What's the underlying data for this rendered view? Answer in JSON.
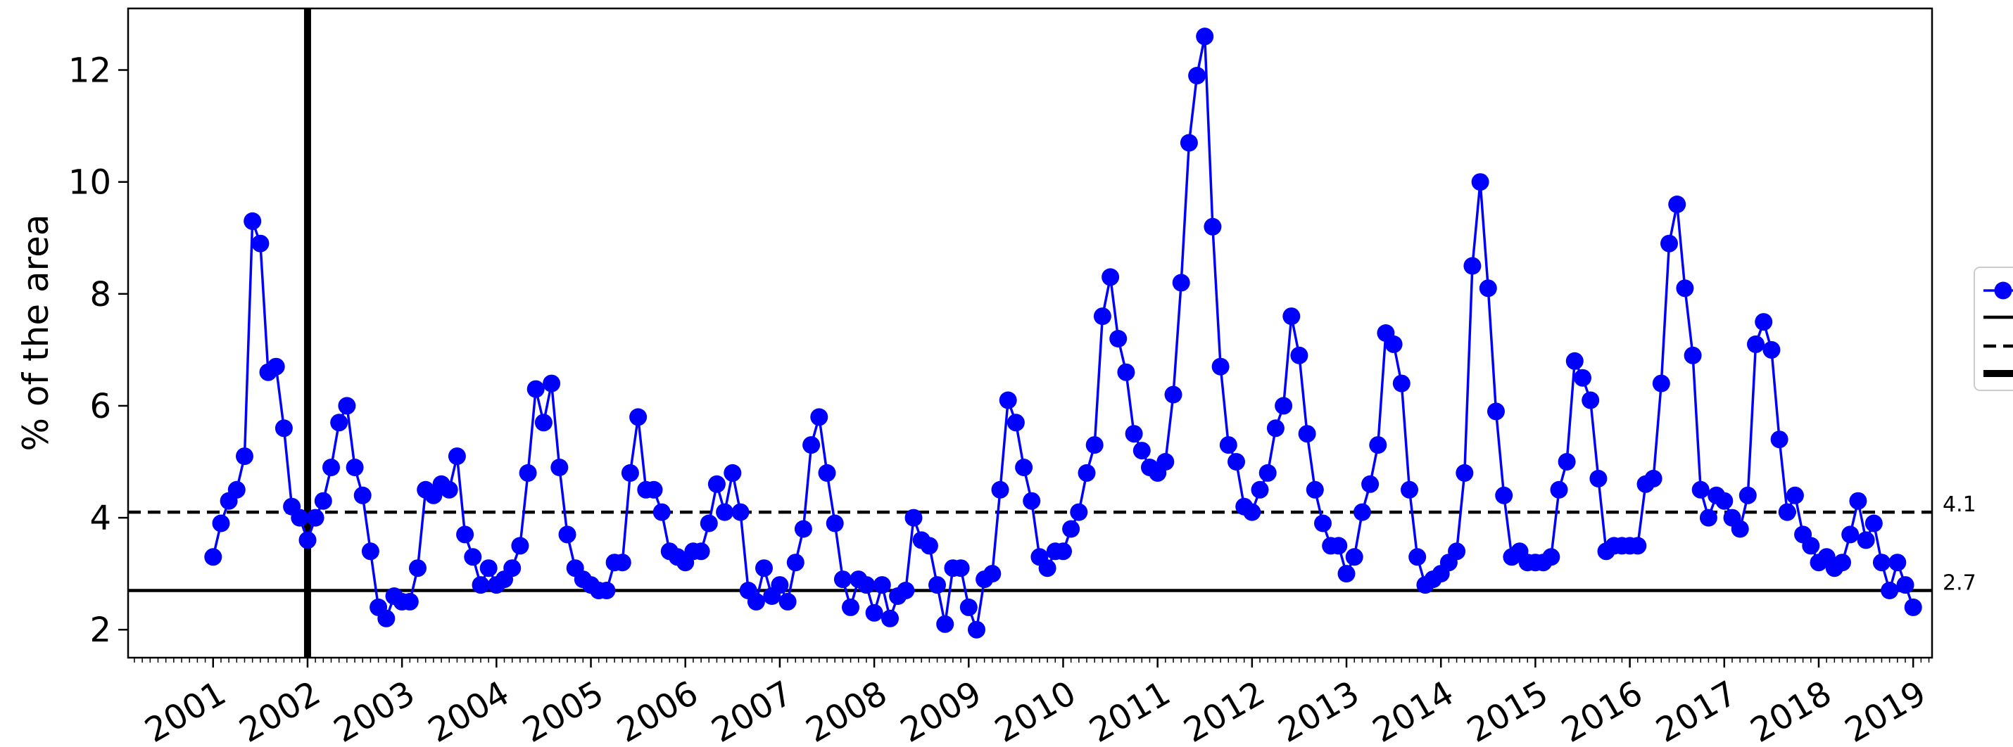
{
  "chart_data": {
    "type": "line",
    "title": "",
    "xlabel": "",
    "ylabel": "% of the area",
    "xlim": [
      2000.1,
      2019.2
    ],
    "ylim": [
      1.5,
      13.1
    ],
    "yticks": [
      2,
      4,
      6,
      8,
      10,
      12
    ],
    "xticks": [
      "2001",
      "2002",
      "2003",
      "2004",
      "2005",
      "2006",
      "2007",
      "2008",
      "2009",
      "2010",
      "2011",
      "2012",
      "2013",
      "2014",
      "2015",
      "2016",
      "2017",
      "2018",
      "2019"
    ],
    "grid": false,
    "legend_position": "right (clipped)",
    "colors": {
      "series": "#0000ff",
      "reference": "#000000"
    },
    "series": [
      {
        "start": [
          2001,
          1
        ],
        "values": [
          3.3,
          3.9,
          4.3,
          4.5,
          5.1,
          9.3,
          8.9,
          6.6,
          6.7,
          5.6,
          4.2,
          4.0,
          3.6,
          4.0,
          4.3,
          4.9,
          5.7,
          6.0,
          4.9,
          4.4,
          3.4,
          2.4,
          2.2,
          2.6,
          2.5,
          2.5,
          3.1,
          4.5,
          4.4,
          4.6,
          4.5,
          5.1,
          3.7,
          3.3,
          2.8,
          3.1,
          2.8,
          2.9,
          3.1,
          3.5,
          4.8,
          6.3,
          5.7,
          6.4,
          4.9,
          3.7,
          3.1,
          2.9,
          2.8,
          2.7,
          2.7,
          3.2,
          3.2,
          4.8,
          5.8,
          4.5,
          4.5,
          4.1,
          3.4,
          3.3,
          3.2,
          3.4,
          3.4,
          3.9,
          4.6,
          4.1,
          4.8,
          4.1,
          2.7,
          2.5,
          3.1,
          2.6,
          2.8,
          2.5,
          3.2,
          3.8,
          5.3,
          5.8,
          4.8,
          3.9,
          2.9,
          2.4,
          2.9,
          2.8,
          2.3,
          2.8,
          2.2,
          2.6,
          2.7,
          4.0,
          3.6,
          3.5,
          2.8,
          2.1,
          3.1,
          3.1,
          2.4,
          2.0,
          2.9,
          3.0,
          4.5,
          6.1,
          5.7,
          4.9,
          4.3,
          3.3,
          3.1,
          3.4,
          3.4,
          3.8,
          4.1,
          4.8,
          5.3,
          7.6,
          8.3,
          7.2,
          6.6,
          5.5,
          5.2,
          4.9,
          4.8,
          5.0,
          6.2,
          8.2,
          10.7,
          11.9,
          12.6,
          9.2,
          6.7,
          5.3,
          5.0,
          4.2,
          4.1,
          4.5,
          4.8,
          5.6,
          6.0,
          7.6,
          6.9,
          5.5,
          4.5,
          3.9,
          3.5,
          3.5,
          3.0,
          3.3,
          4.1,
          4.6,
          5.3,
          7.3,
          7.1,
          6.4,
          4.5,
          3.3,
          2.8,
          2.9,
          3.0,
          3.2,
          3.4,
          4.8,
          8.5,
          10.0,
          8.1,
          5.9,
          4.4,
          3.3,
          3.4,
          3.2,
          3.2,
          3.2,
          3.3,
          4.5,
          5.0,
          6.8,
          6.5,
          6.1,
          4.7,
          3.4,
          3.5,
          3.5,
          3.5,
          3.5,
          4.6,
          4.7,
          6.4,
          8.9,
          9.6,
          8.1,
          6.9,
          4.5,
          4.0,
          4.4,
          4.3,
          4.0,
          3.8,
          4.4,
          7.1,
          7.5,
          7.0,
          5.4,
          4.1,
          4.4,
          3.7,
          3.5,
          3.2,
          3.3,
          3.1,
          3.2,
          3.7,
          4.3,
          3.6,
          3.9,
          3.2,
          2.7,
          3.2,
          2.8,
          2.4
        ]
      }
    ],
    "hlines": [
      {
        "y": 4.1,
        "style": "dashed",
        "label": "4.1"
      },
      {
        "y": 2.7,
        "style": "solid",
        "label": "2.7"
      }
    ],
    "vlines": [
      {
        "x": 2002.0,
        "style": "thick"
      }
    ]
  }
}
